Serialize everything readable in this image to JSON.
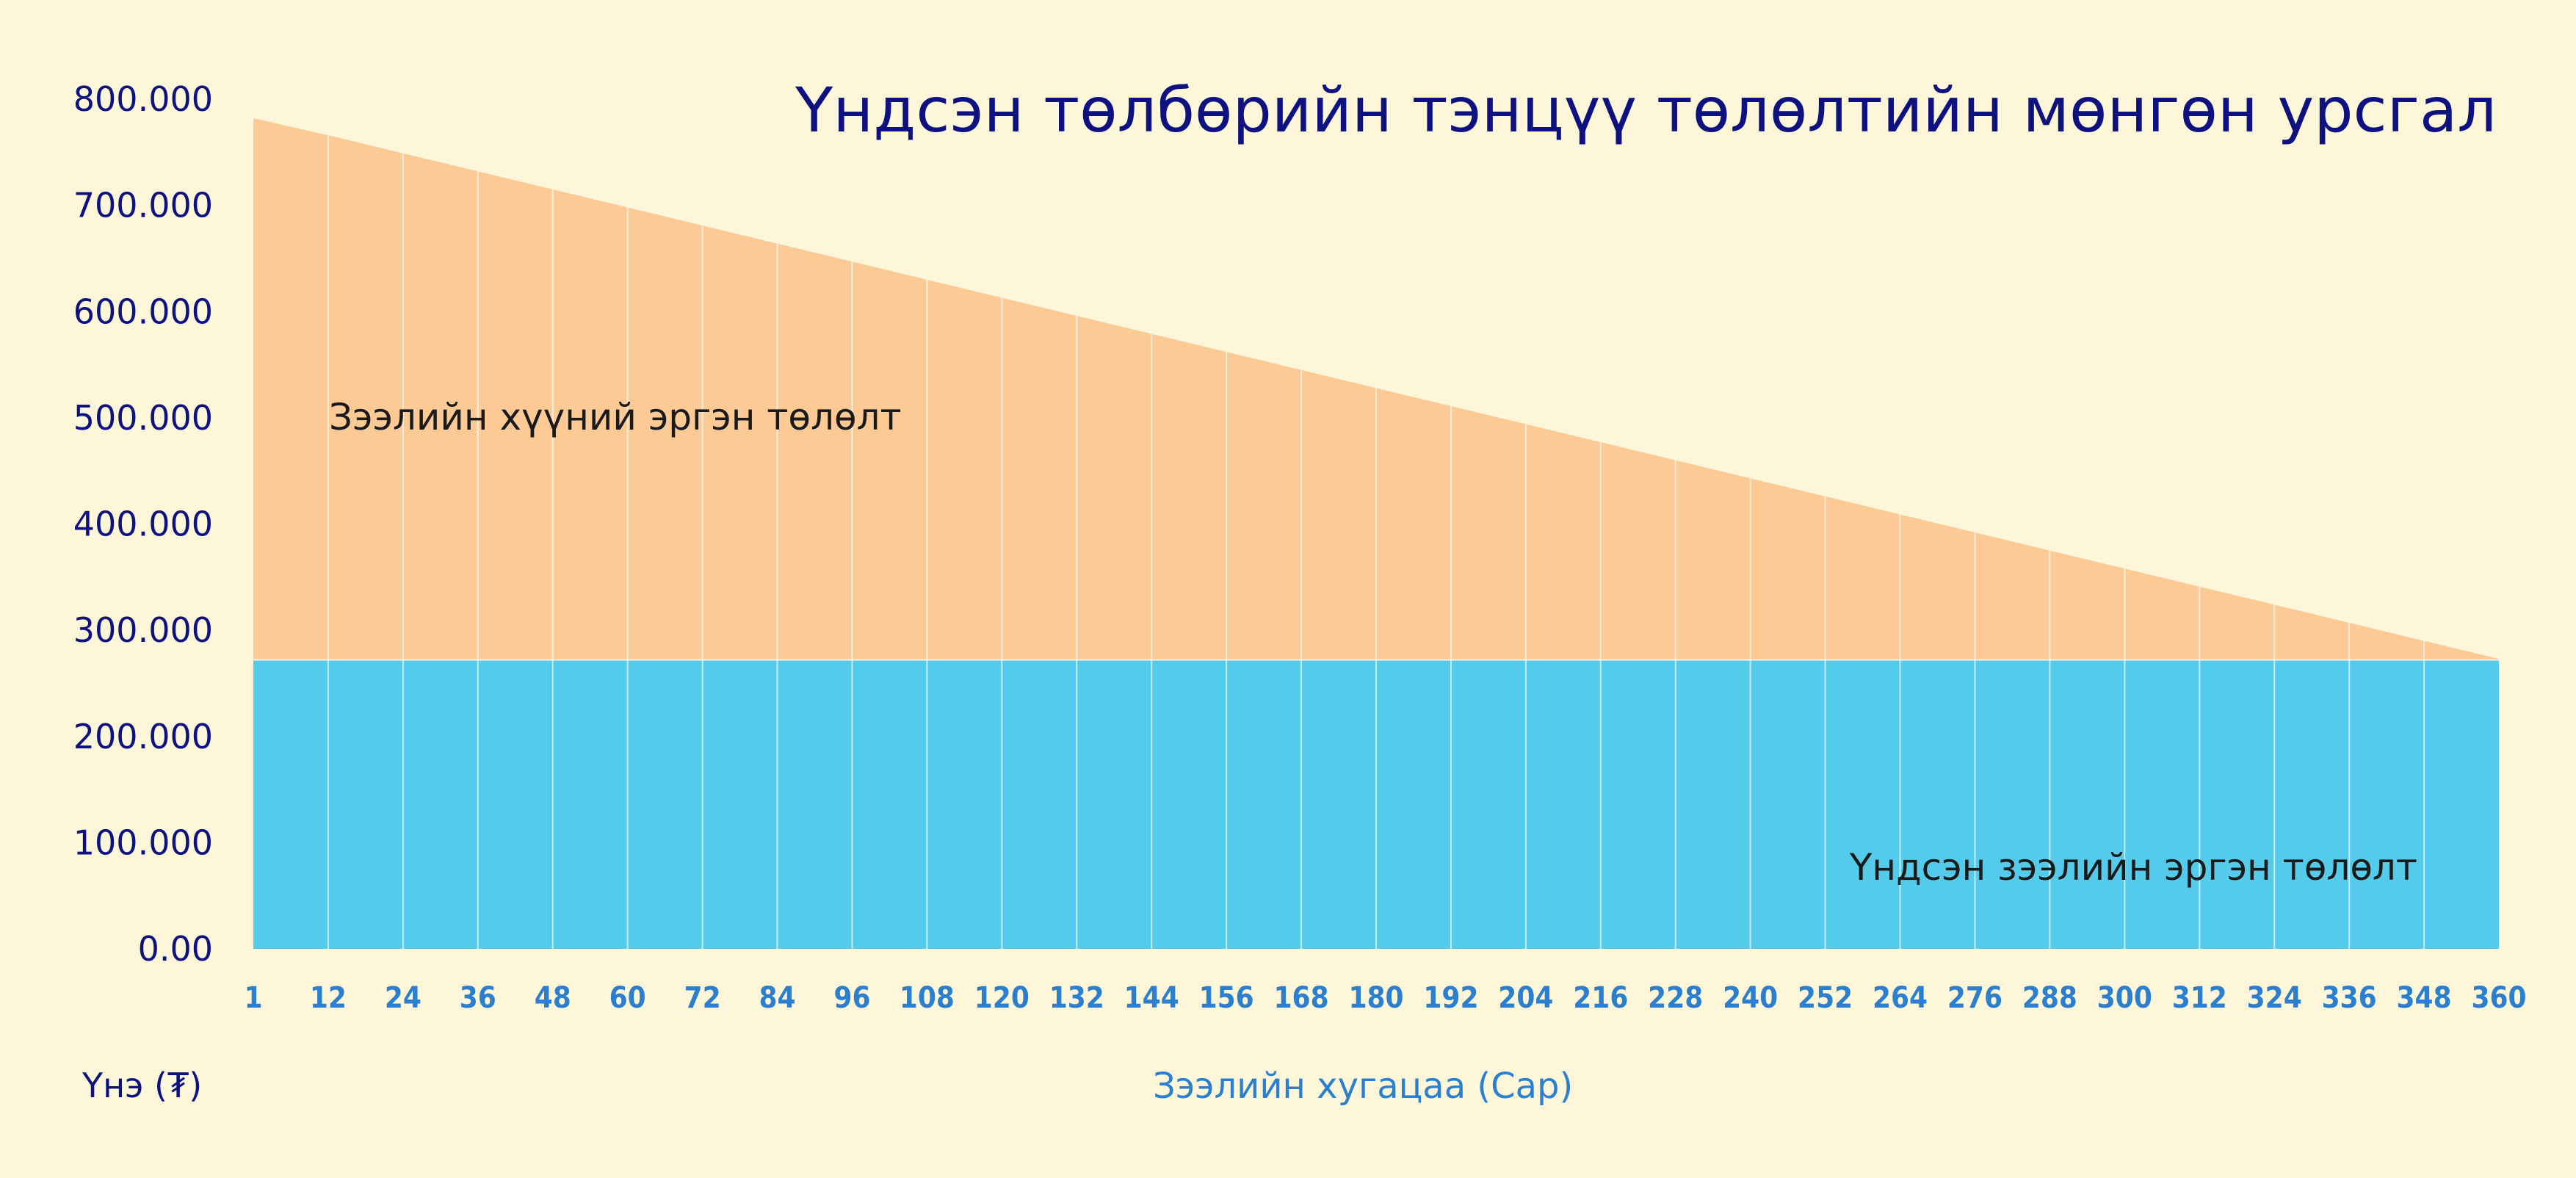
{
  "chart_data": {
    "type": "area",
    "title": "Үндсэн төлбөрийн тэнцүү төлөлтийн мөнгөн урсгал",
    "ylabel": "Үнэ (₮)",
    "xlabel": "Зээлийн хугацаа (Сар)",
    "x": [
      1,
      12,
      24,
      36,
      48,
      60,
      72,
      84,
      96,
      108,
      120,
      132,
      144,
      156,
      168,
      180,
      192,
      204,
      216,
      228,
      240,
      252,
      264,
      276,
      288,
      300,
      312,
      324,
      336,
      348,
      360
    ],
    "y_ticks": [
      "0.00",
      "100.000",
      "200.000",
      "300.000",
      "400.000",
      "500.000",
      "600.000",
      "700.000",
      "800.000"
    ],
    "ylim": [
      0,
      800000
    ],
    "series": [
      {
        "name": "Үндсэн зээлийн эргэн төлөлт",
        "color": "#55cbeb",
        "values": [
          272000,
          272000,
          272000,
          272000,
          272000,
          272000,
          272000,
          272000,
          272000,
          272000,
          272000,
          272000,
          272000,
          272000,
          272000,
          272000,
          272000,
          272000,
          272000,
          272000,
          272000,
          272000,
          272000,
          272000,
          272000,
          272000,
          272000,
          272000,
          272000,
          272000,
          272000
        ]
      },
      {
        "name": "Зээлийн хүүний эргэн төлөлт",
        "color": "#fdca96",
        "values": [
          510000,
          494000,
          477000,
          460000,
          443000,
          426000,
          409000,
          392000,
          375000,
          358000,
          341000,
          324000,
          307000,
          290000,
          273000,
          256000,
          239000,
          222000,
          205000,
          188000,
          171000,
          154000,
          137000,
          120000,
          103000,
          86000,
          69000,
          52000,
          35000,
          18000,
          1000
        ]
      }
    ],
    "stacked": true,
    "grid": false,
    "vertical_separators": true
  }
}
